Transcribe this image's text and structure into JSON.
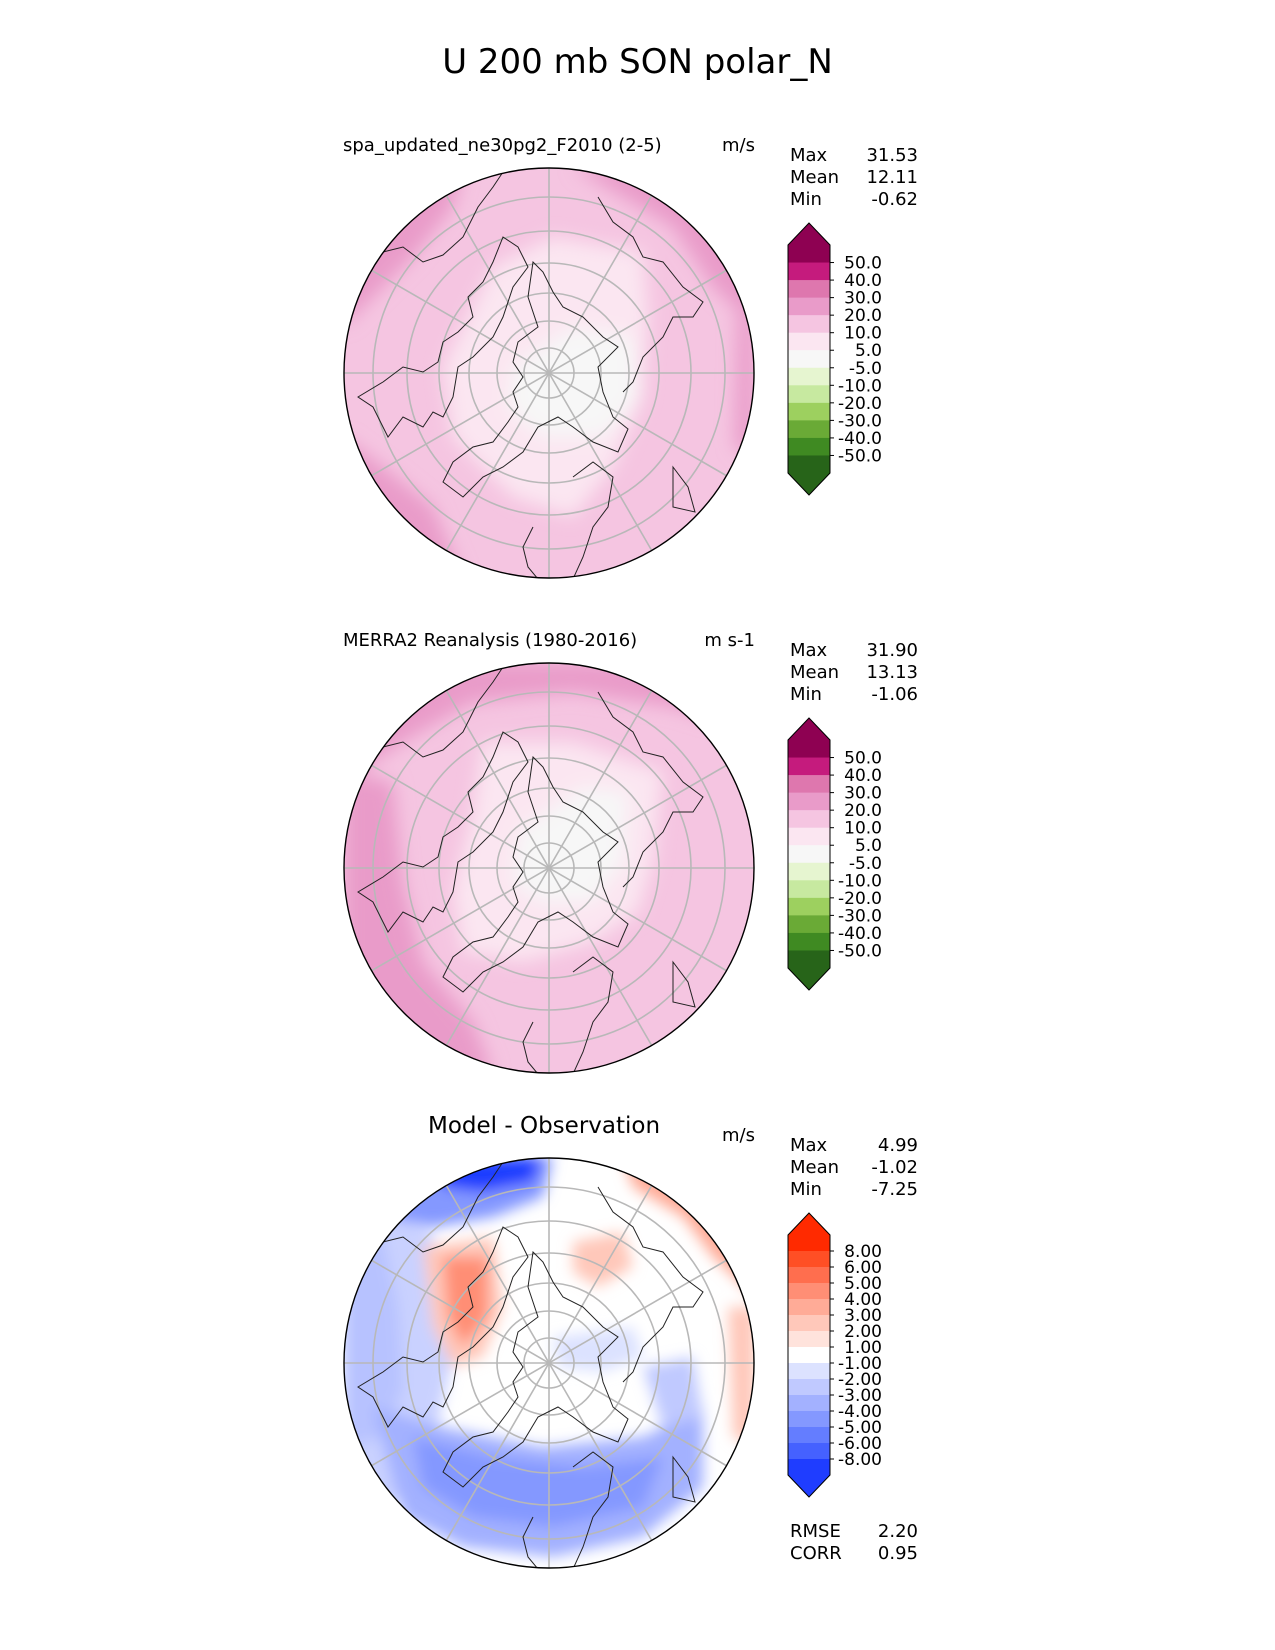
{
  "figure_title": "U 200 mb SON polar_N",
  "chart_data": [
    {
      "type": "heatmap",
      "title": "spa_updated_ne30pg2_F2010 (2-5)",
      "units": "m/s",
      "projection": "north polar stereographic",
      "stats": [
        {
          "label": "Max",
          "value": "31.53"
        },
        {
          "label": "Mean",
          "value": "12.11"
        },
        {
          "label": "Min",
          "value": "-0.62"
        }
      ],
      "colorbar": {
        "ticks": [
          "50.0",
          "40.0",
          "30.0",
          "20.0",
          "10.0",
          "5.0",
          "-5.0",
          "-10.0",
          "-20.0",
          "-30.0",
          "-40.0",
          "-50.0"
        ],
        "colors": [
          "#8e0152",
          "#c51b7d",
          "#de77ae",
          "#e99bc9",
          "#f5c5e1",
          "#fbe6f1",
          "#f7f7f7",
          "#e6f5d0",
          "#c7e9a0",
          "#9dd05f",
          "#6aaa36",
          "#3f8a22",
          "#276419"
        ],
        "extend": "both"
      }
    },
    {
      "type": "heatmap",
      "title": "MERRA2 Reanalysis (1980-2016)",
      "units": "m s-1",
      "projection": "north polar stereographic",
      "stats": [
        {
          "label": "Max",
          "value": "31.90"
        },
        {
          "label": "Mean",
          "value": "13.13"
        },
        {
          "label": "Min",
          "value": "-1.06"
        }
      ],
      "colorbar": {
        "ticks": [
          "50.0",
          "40.0",
          "30.0",
          "20.0",
          "10.0",
          "5.0",
          "-5.0",
          "-10.0",
          "-20.0",
          "-30.0",
          "-40.0",
          "-50.0"
        ],
        "colors": [
          "#8e0152",
          "#c51b7d",
          "#de77ae",
          "#e99bc9",
          "#f5c5e1",
          "#fbe6f1",
          "#f7f7f7",
          "#e6f5d0",
          "#c7e9a0",
          "#9dd05f",
          "#6aaa36",
          "#3f8a22",
          "#276419"
        ],
        "extend": "both"
      }
    },
    {
      "type": "heatmap",
      "title": "Model - Observation",
      "units": "m/s",
      "projection": "north polar stereographic",
      "stats": [
        {
          "label": "Max",
          "value": "4.99"
        },
        {
          "label": "Mean",
          "value": "-1.02"
        },
        {
          "label": "Min",
          "value": "-7.25"
        }
      ],
      "footer_stats": [
        {
          "label": "RMSE",
          "value": "2.20"
        },
        {
          "label": "CORR",
          "value": "0.95"
        }
      ],
      "colorbar": {
        "ticks": [
          "8.00",
          "6.00",
          "5.00",
          "4.00",
          "3.00",
          "2.00",
          "1.00",
          "-1.00",
          "-2.00",
          "-3.00",
          "-4.00",
          "-5.00",
          "-6.00",
          "-8.00"
        ],
        "colors": [
          "#ff2a00",
          "#ff4f25",
          "#ff6e4e",
          "#ff8e75",
          "#ffab97",
          "#ffc8ba",
          "#ffe3dc",
          "#ffffff",
          "#dce2ff",
          "#c0c9ff",
          "#a3b1ff",
          "#8498ff",
          "#647dff",
          "#4561ff",
          "#1f3dff"
        ],
        "extend": "both"
      }
    }
  ]
}
